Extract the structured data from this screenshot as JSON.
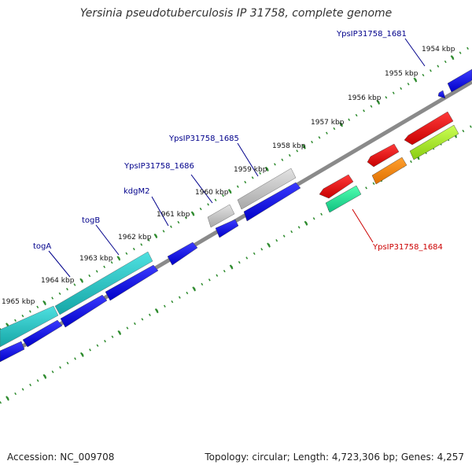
{
  "title": "Yersinia pseudotuberculosis IP 31758, complete genome",
  "footer": {
    "accession": "Accession: NC_009708",
    "summary": "Topology: circular; Length: 4,723,306 bp; Genes: 4,257"
  },
  "colors": {
    "backbone": "#8a8a8a",
    "ticks": "#2e8b2e",
    "forward_cds": "#0000ee",
    "label_blue": "#00008b",
    "label_red": "#cc0000"
  },
  "scale": {
    "unit": "kbp",
    "ticks": [
      {
        "kbp": 1954,
        "label": "1954 kbp"
      },
      {
        "kbp": 1955,
        "label": "1955 kbp"
      },
      {
        "kbp": 1956,
        "label": "1956 kbp"
      },
      {
        "kbp": 1957,
        "label": "1957 kbp"
      },
      {
        "kbp": 1958,
        "label": "1958 kbp"
      },
      {
        "kbp": 1959,
        "label": "1959 kbp"
      },
      {
        "kbp": 1960,
        "label": "1960 kbp"
      },
      {
        "kbp": 1961,
        "label": "1961 kbp"
      },
      {
        "kbp": 1962,
        "label": "1962 kbp"
      },
      {
        "kbp": 1963,
        "label": "1963 kbp"
      },
      {
        "kbp": 1964,
        "label": "1964 kbp"
      },
      {
        "kbp": 1965,
        "label": "1965 kbp"
      }
    ]
  },
  "gene_labels": [
    {
      "text": "YpsIP31758_1681",
      "color": "#00008b"
    },
    {
      "text": "YpsIP31758_1685",
      "color": "#00008b"
    },
    {
      "text": "YpsIP31758_1686",
      "color": "#00008b"
    },
    {
      "text": "kdgM2",
      "color": "#00008b"
    },
    {
      "text": "togB",
      "color": "#00008b"
    },
    {
      "text": "togA",
      "color": "#00008b"
    },
    {
      "text": "YpsIP31758_1684",
      "color": "#cc0000"
    }
  ]
}
